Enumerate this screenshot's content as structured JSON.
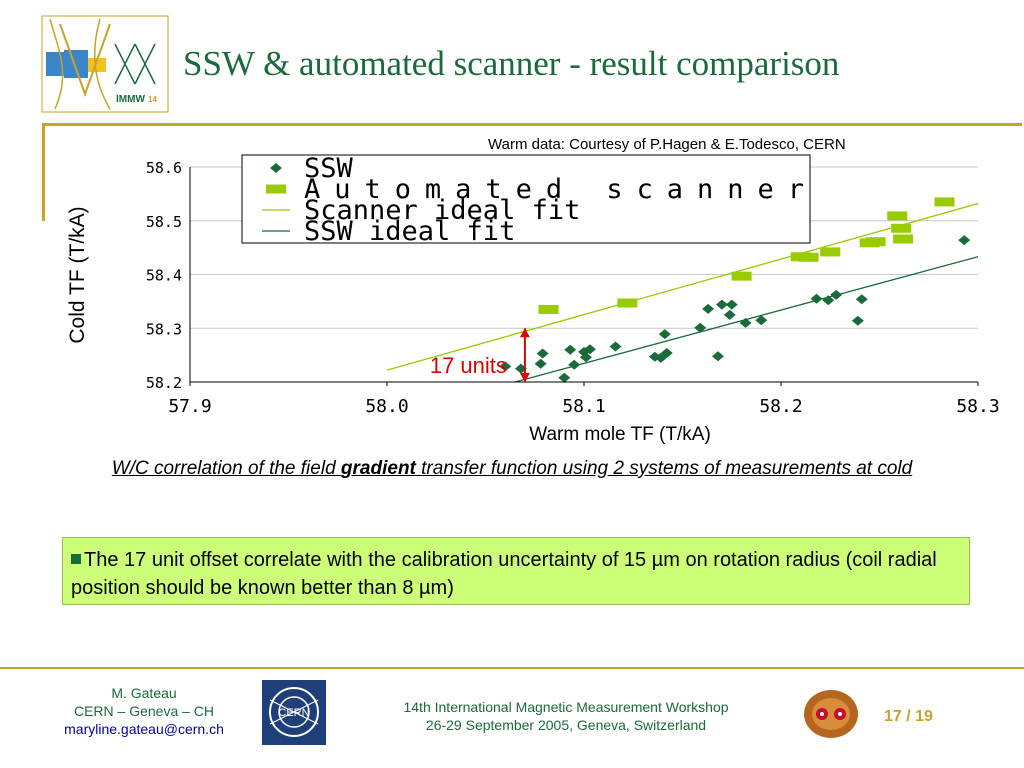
{
  "slide": {
    "title": "SSW & automated scanner - result comparison",
    "courtesy": "Warm data: Courtesy of P.Hagen & E.Todesco, CERN",
    "logo_text": "IMMW",
    "logo_superscript": "14",
    "caption_part1": "W/C correlation of the field ",
    "caption_bold": "gradient",
    "caption_part2": " transfer function using 2 systems of measurements at cold",
    "note_text": "The 17 unit offset correlate with the calibration uncertainty of 15 µm on rotation radius (coil radial position should be known better than 8 µm)",
    "colors": {
      "title": "#1a6b3a",
      "rule": "#c9a227",
      "note_bg": "#ccff77"
    }
  },
  "footer": {
    "author_name": "M. Gateau",
    "author_affiliation": "CERN – Geneva – CH",
    "author_email": "maryline.gateau@cern.ch",
    "workshop_line1": "14th International Magnetic Measurement Workshop",
    "workshop_line2": "26-29 September 2005, Geneva, Switzerland",
    "page_current": "17",
    "page_sep": " / ",
    "page_total": "19",
    "cern_logo_text": "CERN"
  },
  "chart_data": {
    "type": "scatter",
    "xlabel": "Warm mole TF (T/kA)",
    "ylabel": "Cold TF  (T/kA)",
    "xlim": [
      57.9,
      58.3
    ],
    "ylim": [
      58.2,
      58.6
    ],
    "x_ticks": [
      "57.9",
      "58.0",
      "58.1",
      "58.2",
      "58.3"
    ],
    "y_ticks": [
      "58.2",
      "58.3",
      "58.4",
      "58.5",
      "58.6"
    ],
    "grid": "horizontal",
    "legend_position": "top",
    "annotation": {
      "text": "17 units",
      "x": 58.07,
      "y1": 58.3,
      "y2": 58.2,
      "color": "#e00000"
    },
    "series": [
      {
        "name": "SSW",
        "marker": "diamond",
        "color": "#1a6b3a",
        "points": [
          [
            58.06,
            58.229
          ],
          [
            58.068,
            58.225
          ],
          [
            58.078,
            58.234
          ],
          [
            58.079,
            58.253
          ],
          [
            58.09,
            58.208
          ],
          [
            58.093,
            58.26
          ],
          [
            58.095,
            58.232
          ],
          [
            58.101,
            58.246
          ],
          [
            58.1,
            58.256
          ],
          [
            58.103,
            58.261
          ],
          [
            58.116,
            58.266
          ],
          [
            58.136,
            58.247
          ],
          [
            58.139,
            58.245
          ],
          [
            58.141,
            58.289
          ],
          [
            58.142,
            58.254
          ],
          [
            58.159,
            58.301
          ],
          [
            58.163,
            58.336
          ],
          [
            58.168,
            58.248
          ],
          [
            58.17,
            58.344
          ],
          [
            58.174,
            58.325
          ],
          [
            58.175,
            58.344
          ],
          [
            58.182,
            58.31
          ],
          [
            58.19,
            58.315
          ],
          [
            58.218,
            58.355
          ],
          [
            58.224,
            58.352
          ],
          [
            58.228,
            58.362
          ],
          [
            58.239,
            58.314
          ],
          [
            58.241,
            58.354
          ],
          [
            58.293,
            58.464
          ]
        ]
      },
      {
        "name": "Automated scanner",
        "marker": "square",
        "color": "#99cc00",
        "points": [
          [
            58.082,
            58.335
          ],
          [
            58.122,
            58.347
          ],
          [
            58.18,
            58.397
          ],
          [
            58.21,
            58.433
          ],
          [
            58.214,
            58.432
          ],
          [
            58.225,
            58.442
          ],
          [
            58.245,
            58.459
          ],
          [
            58.248,
            58.461
          ],
          [
            58.259,
            58.509
          ],
          [
            58.261,
            58.486
          ],
          [
            58.262,
            58.466
          ],
          [
            58.283,
            58.535
          ]
        ]
      },
      {
        "name": "Scanner ideal fit",
        "type": "line",
        "color": "#99cc00",
        "x": [
          58.0,
          58.3
        ],
        "y": [
          58.222,
          58.532
        ]
      },
      {
        "name": "SSW ideal fit",
        "type": "line",
        "color": "#1a6b3a",
        "x": [
          58.065,
          58.3
        ],
        "y": [
          58.2,
          58.433
        ]
      }
    ]
  }
}
